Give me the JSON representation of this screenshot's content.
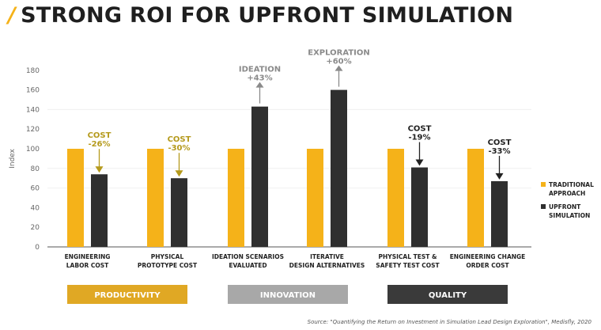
{
  "title": "STRONG ROI FOR UPFRONT SIMULATION",
  "source": "Source: \"Quantifying the Return on Investment in Simulation Lead Design Exploration\", Medisfly, 2020",
  "colors": {
    "traditional": "#f5b219",
    "upfront": "#2f2f2f",
    "annotation_gold": "#b59a1c",
    "annotation_dark": "#222222",
    "annotation_grey": "#8a8a8a",
    "productivity": "#e0a824",
    "innovation": "#a8a8a8",
    "quality": "#3a3a3a"
  },
  "chart_data": {
    "type": "bar",
    "ylabel": "Index",
    "ylim": [
      0,
      180
    ],
    "yticks": [
      0,
      20,
      40,
      60,
      80,
      100,
      120,
      140,
      160,
      180
    ],
    "categories": [
      [
        "ENGINEERING",
        "LABOR COST"
      ],
      [
        "PHYSICAL",
        "PROTOTYPE COST"
      ],
      [
        "IDEATION SCENARIOS",
        "EVALUATED"
      ],
      [
        "ITERATIVE",
        "DESIGN ALTERNATIVES"
      ],
      [
        "PHYSICAL TEST &",
        "SAFETY TEST COST"
      ],
      [
        "ENGINEERING CHANGE",
        "ORDER COST"
      ]
    ],
    "series": [
      {
        "name": "TRADITIONAL APPROACH",
        "legend": [
          "TRADITIONAL",
          "APPROACH"
        ],
        "values": [
          100,
          100,
          100,
          100,
          100,
          100
        ]
      },
      {
        "name": "UPFRONT SIMULATION",
        "legend": [
          "UPFRONT",
          "SIMULATION"
        ],
        "values": [
          74,
          70,
          143,
          160,
          81,
          67
        ]
      }
    ],
    "annotations": [
      {
        "lines": [
          "COST",
          "-26%"
        ],
        "direction": "down",
        "style": "gold"
      },
      {
        "lines": [
          "COST",
          "-30%"
        ],
        "direction": "down",
        "style": "gold"
      },
      {
        "lines": [
          "IDEATION",
          "+43%"
        ],
        "direction": "up",
        "style": "grey"
      },
      {
        "lines": [
          "EXPLORATION",
          "+60%"
        ],
        "direction": "up",
        "style": "grey"
      },
      {
        "lines": [
          "COST",
          "-19%"
        ],
        "direction": "down",
        "style": "dark"
      },
      {
        "lines": [
          "COST",
          "-33%"
        ],
        "direction": "down",
        "style": "dark"
      }
    ],
    "groups": [
      {
        "label": "PRODUCTIVITY",
        "categories": [
          0,
          1
        ],
        "style": "productivity"
      },
      {
        "label": "INNOVATION",
        "categories": [
          2,
          3
        ],
        "style": "innovation"
      },
      {
        "label": "QUALITY",
        "categories": [
          4,
          5
        ],
        "style": "quality"
      }
    ],
    "legend_position": "right",
    "grid": false
  }
}
